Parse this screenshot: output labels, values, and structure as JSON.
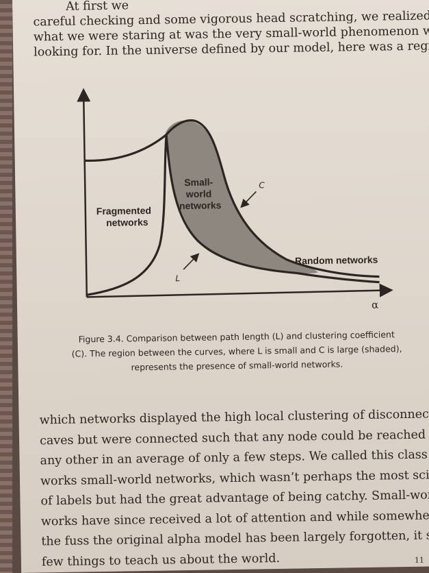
{
  "book": {
    "top_lines": [
      "At first we",
      "careful checking and some vigorous head scratching, we realized that",
      "what we were staring at was the very small-world phenomenon we were",
      "looking for. In the universe defined by our model, here was a regime in"
    ],
    "figure": {
      "labels": {
        "fragmented": [
          "Fragmented",
          "networks"
        ],
        "small_world": [
          "Small-",
          "world",
          "networks"
        ],
        "random": "Random networks",
        "c_marker": "C",
        "l_marker": "L",
        "x_axis": "α"
      },
      "caption_lines": [
        "Figure 3.4. Comparison between path length (L) and clustering coefficient",
        "(C). The region between the curves, where L is small and C is large (shaded),",
        "represents the presence of small-world networks."
      ],
      "colors": {
        "ink": "#2b2623",
        "shade": "#8e8780"
      }
    },
    "bottom_lines": [
      "which networks displayed the high local clustering of disconnected",
      "caves but were connected such that any node could be reached from",
      "any other in an average of only a few steps. We called this class of net-",
      "works small-world networks, which wasn’t perhaps the most scientific",
      "of labels but had the great advantage of being catchy. Small-world net-",
      "works have since received a lot of attention and while somewhere in all",
      "the fuss the original alpha model has been largely forgotten, it still has a",
      "few things to teach us about the world."
    ],
    "page_number_fragment": "11"
  }
}
